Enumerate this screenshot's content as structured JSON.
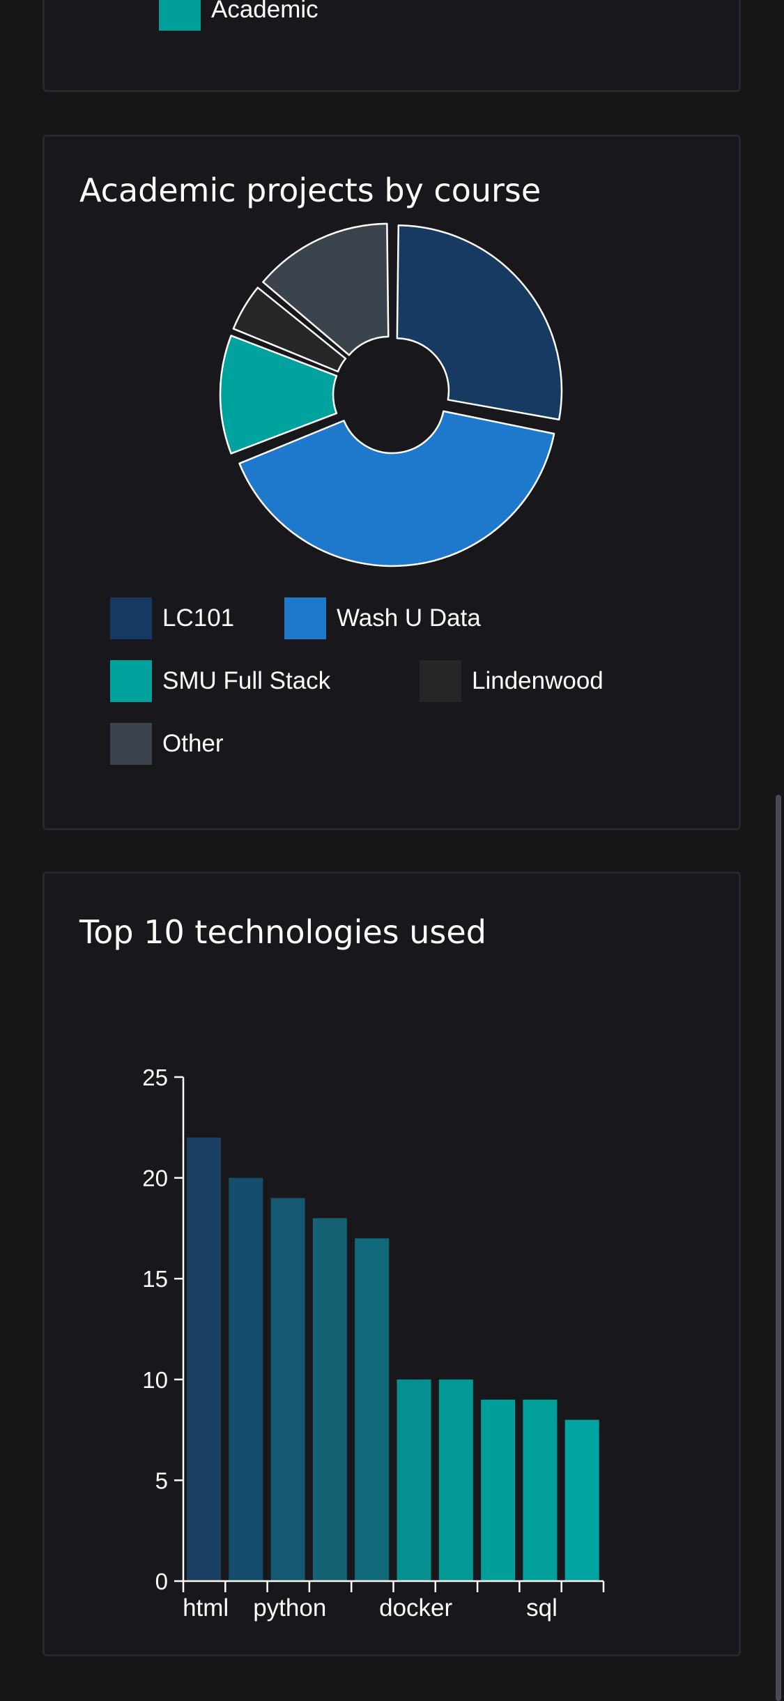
{
  "top_card": {
    "legend_label": "Academic",
    "legend_color": "#009f9a"
  },
  "chart_data": [
    {
      "type": "pie",
      "title": "Academic projects by course",
      "donut": true,
      "legend_placement": "bottom",
      "labels": [
        "LC101",
        "Wash U Data",
        "SMU Full Stack",
        "Lindenwood",
        "Other"
      ],
      "values": [
        28,
        41,
        12,
        5,
        14
      ],
      "colors": [
        "#173a62",
        "#1e78cc",
        "#00a29e",
        "#262629",
        "#3b434d"
      ]
    },
    {
      "type": "bar",
      "title": "Top 10 technologies used",
      "categories": [
        "html",
        "",
        "python",
        "",
        "",
        "docker",
        "",
        "",
        "sql",
        ""
      ],
      "values": [
        22,
        20,
        19,
        18,
        17,
        10,
        10,
        9,
        9,
        8
      ],
      "colors": [
        "#1b3e63",
        "#164d6c",
        "#155871",
        "#146274",
        "#116a7a",
        "#06908f",
        "#049895",
        "#029e99",
        "#02a09b",
        "#00a39f"
      ],
      "yticks": [
        0,
        5,
        10,
        15,
        20,
        25
      ],
      "ylim": [
        0,
        25
      ],
      "xlabel": "",
      "ylabel": "",
      "grid": false
    }
  ]
}
